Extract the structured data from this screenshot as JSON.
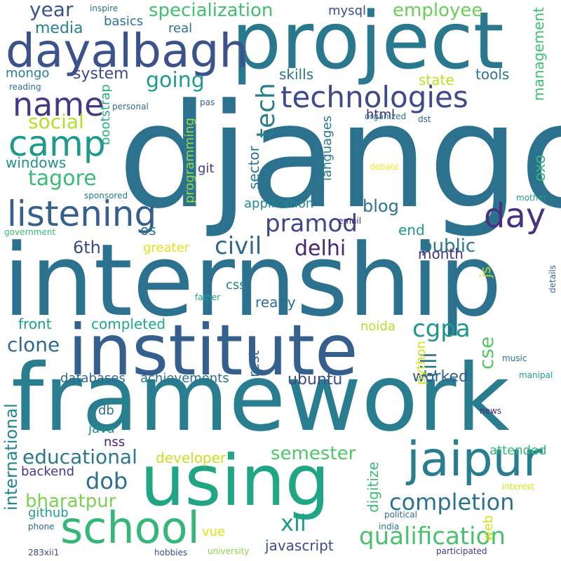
{
  "word_cloud": {
    "background": "#ffffff",
    "words": [
      {
        "text": "django",
        "color": "#2c728e"
      },
      {
        "text": "internship",
        "color": "#2c728e"
      },
      {
        "text": "framework",
        "color": "#287d8e"
      },
      {
        "text": "project",
        "color": "#2a788e"
      },
      {
        "text": "institute",
        "color": "#355f8d"
      },
      {
        "text": "using",
        "color": "#21a685"
      },
      {
        "text": "dayalbagh",
        "color": "#3b528b"
      },
      {
        "text": "jaipur",
        "color": "#287d8e"
      },
      {
        "text": "school",
        "color": "#35b779"
      },
      {
        "text": "technologies",
        "color": "#3e4a89"
      },
      {
        "text": "listening",
        "color": "#355f8d"
      },
      {
        "text": "camp",
        "color": "#1f9a8a"
      },
      {
        "text": "name",
        "color": "#443983"
      },
      {
        "text": "day",
        "color": "#46327e"
      },
      {
        "text": "completion",
        "color": "#2c728e"
      },
      {
        "text": "qualification",
        "color": "#4ac16d"
      },
      {
        "text": "cgpa",
        "color": "#1f968b"
      },
      {
        "text": "civil",
        "color": "#31688e"
      },
      {
        "text": "pramod",
        "color": "#414487"
      },
      {
        "text": "tech",
        "color": "#287d8e"
      },
      {
        "text": "specialization",
        "color": "#44bf70"
      },
      {
        "text": "employee",
        "color": "#6ccd5a"
      },
      {
        "text": "management",
        "color": "#3fbc73"
      },
      {
        "text": "international",
        "color": "#24868e"
      },
      {
        "text": "educational",
        "color": "#2a788e"
      },
      {
        "text": "semester",
        "color": "#52c569"
      },
      {
        "text": "bharatpur",
        "color": "#7ad151"
      },
      {
        "text": "year",
        "color": "#3b528b"
      },
      {
        "text": "media",
        "color": "#26828e"
      },
      {
        "text": "going",
        "color": "#1e9b8a"
      },
      {
        "text": "system",
        "color": "#3e4a89"
      },
      {
        "text": "social",
        "color": "#b5de2b"
      },
      {
        "text": "tagore",
        "color": "#3bbb75"
      },
      {
        "text": "windows",
        "color": "#21918c"
      },
      {
        "text": "6th",
        "color": "#3e4989"
      },
      {
        "text": "delhi",
        "color": "#482677"
      },
      {
        "text": "public",
        "color": "#2a788e"
      },
      {
        "text": "blog",
        "color": "#2c728e"
      },
      {
        "text": "clone",
        "color": "#31688e"
      },
      {
        "text": "till",
        "color": "#2c738e"
      },
      {
        "text": "cse",
        "color": "#56c667"
      },
      {
        "text": "dob",
        "color": "#2e6e8e"
      },
      {
        "text": "xii",
        "color": "#1e9b8a"
      },
      {
        "text": "javascript",
        "color": "#3e4989"
      },
      {
        "text": "ubuntu",
        "color": "#3e4a89"
      },
      {
        "text": "worked",
        "color": "#355e8d"
      },
      {
        "text": "sector",
        "color": "#2d708e"
      },
      {
        "text": "rest",
        "color": "#31688e"
      },
      {
        "text": "mysql",
        "color": "#3e4a89"
      },
      {
        "text": "basics",
        "color": "#2c738e"
      },
      {
        "text": "real",
        "color": "#2c728e"
      },
      {
        "text": "mongo",
        "color": "#26828e"
      },
      {
        "text": "skills",
        "color": "#2d708e"
      },
      {
        "text": "state",
        "color": "#bddf26"
      },
      {
        "text": "tools",
        "color": "#2c738e"
      },
      {
        "text": "html",
        "color": "#482475"
      },
      {
        "text": "bootstrap",
        "color": "#29af7f"
      },
      {
        "text": "programming",
        "color": "#95d840"
      },
      {
        "text": "languages",
        "color": "#2a788e"
      },
      {
        "text": "git",
        "color": "#433e85"
      },
      {
        "text": "oxo",
        "color": "#35b779"
      },
      {
        "text": "application",
        "color": "#24878e"
      },
      {
        "text": "os",
        "color": "#2c738e"
      },
      {
        "text": "greater",
        "color": "#e5e419"
      },
      {
        "text": "end",
        "color": "#1f988b"
      },
      {
        "text": "month",
        "color": "#46337f"
      },
      {
        "text": "js",
        "color": "#b5de2b"
      },
      {
        "text": "front",
        "color": "#1f9e89"
      },
      {
        "text": "completed",
        "color": "#22a884"
      },
      {
        "text": "css",
        "color": "#287c8e"
      },
      {
        "text": "realty",
        "color": "#2d708e"
      },
      {
        "text": "noida",
        "color": "#b8de29"
      },
      {
        "text": "python",
        "color": "#d0e11c"
      },
      {
        "text": "databases",
        "color": "#31688e"
      },
      {
        "text": "achievements",
        "color": "#2e6f8e"
      },
      {
        "text": "db",
        "color": "#2d708e"
      },
      {
        "text": "java",
        "color": "#21908d"
      },
      {
        "text": "nss",
        "color": "#481f70"
      },
      {
        "text": "developer",
        "color": "#c8e020"
      },
      {
        "text": "backend",
        "color": "#443983"
      },
      {
        "text": "attended",
        "color": "#33b679"
      },
      {
        "text": "digitize",
        "color": "#3bbb75"
      },
      {
        "text": "github",
        "color": "#1f9e89"
      },
      {
        "text": "vue",
        "color": "#dde318"
      },
      {
        "text": "web",
        "color": "#d5e21a"
      },
      {
        "text": "inspire",
        "color": "#2e6e8e"
      },
      {
        "text": "reading",
        "color": "#2d708e"
      },
      {
        "text": "personal",
        "color": "#31688e"
      },
      {
        "text": "pas",
        "color": "#33638d"
      },
      {
        "text": "organized",
        "color": "#2a788e"
      },
      {
        "text": "dst",
        "color": "#33638d"
      },
      {
        "text": "debate",
        "color": "#fde725"
      },
      {
        "text": "sponsored",
        "color": "#2a788e"
      },
      {
        "text": "government",
        "color": "#38b977"
      },
      {
        "text": "mother",
        "color": "#1f988b"
      },
      {
        "text": "email",
        "color": "#482878"
      },
      {
        "text": "details",
        "color": "#31688e"
      },
      {
        "text": "father",
        "color": "#1f9e89"
      },
      {
        "text": "music",
        "color": "#2c738e"
      },
      {
        "text": "manipal",
        "color": "#1f9e89"
      },
      {
        "text": "news",
        "color": "#482777"
      },
      {
        "text": "interest",
        "color": "#dce319"
      },
      {
        "text": "political",
        "color": "#2e6f8e"
      },
      {
        "text": "india",
        "color": "#2a788e"
      },
      {
        "text": "phone",
        "color": "#31688e"
      },
      {
        "text": "hobbies",
        "color": "#3e4a89"
      },
      {
        "text": "university",
        "color": "#8fd744"
      },
      {
        "text": "participated",
        "color": "#443983"
      },
      {
        "text": "283xii1",
        "color": "#3e4a89"
      }
    ]
  }
}
